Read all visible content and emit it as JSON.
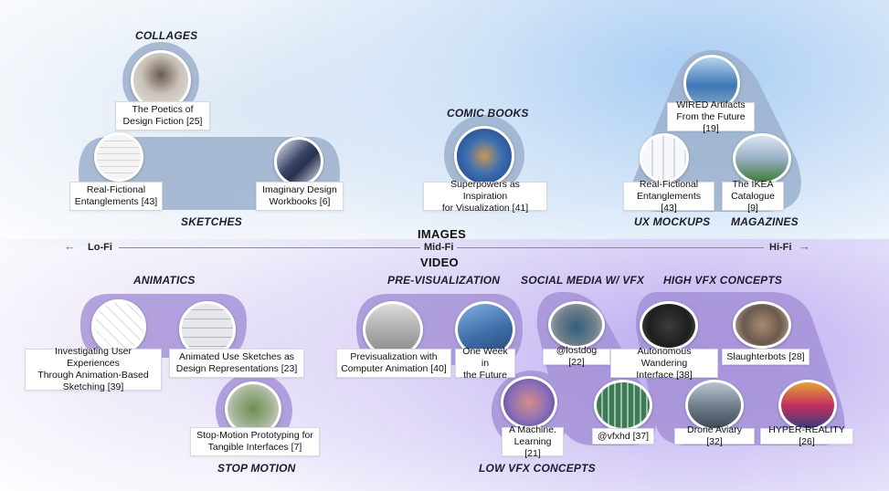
{
  "axis": {
    "left": "Lo-Fi",
    "middle": "Mid-Fi",
    "right": "Hi-Fi",
    "top_section": "IMAGES",
    "bottom_section": "VIDEO"
  },
  "categories": {
    "collages": "COLLAGES",
    "sketches": "SKETCHES",
    "comic_books": "COMIC BOOKS",
    "ux_mockups": "UX MOCKUPS",
    "magazines": "MAGAZINES",
    "animatics": "ANIMATICS",
    "stop_motion": "STOP MOTION",
    "pre_visualization": "PRE-VISUALIZATION",
    "low_vfx": "LOW VFX CONCEPTS",
    "social_media": "SOCIAL MEDIA W/ VFX",
    "high_vfx": "HIGH VFX CONCEPTS"
  },
  "cards": {
    "poetics": "The Poetics of\nDesign Fiction [25]",
    "real_fictional_1": "Real-Fictional\nEntanglements [43]",
    "imaginary": "Imaginary Design\nWorkbooks [6]",
    "superpowers": "Superpowers as Inspiration\nfor Visualization [41]",
    "wired": "WIRED Artifacts\nFrom the Future [19]",
    "real_fictional_2": "Real-Fictional\nEntanglements [43]",
    "ikea": "The IKEA\nCatalogue [9]",
    "investigating": "Investigating User Experiences\nThrough Animation-Based\nSketching [39]",
    "animated_use": "Animated Use Sketches as\nDesign Representations [23]",
    "stop_motion_proto": "Stop-Motion Prototyping for\nTangible Interfaces [7]",
    "previsualization": "Previsualization with\nComputer Animation [40]",
    "one_week": "One Week in\nthe Future",
    "machine_learning": "A Machine.\nLearning [21]",
    "lostdog": "@lostdog [22]",
    "vfxhd": "@vfxhd [37]",
    "autonomous": "Autonomous Wandering\nInterface [38]",
    "slaughterbots": "Slaughterbots [28]",
    "drone": "Drone Aviary [32]",
    "hyper_reality": "HYPER-REALITY [26]"
  },
  "colors": {
    "images_band": "#8ea8c8",
    "video_band": "#a592d8",
    "axis": "#8a8a96"
  }
}
